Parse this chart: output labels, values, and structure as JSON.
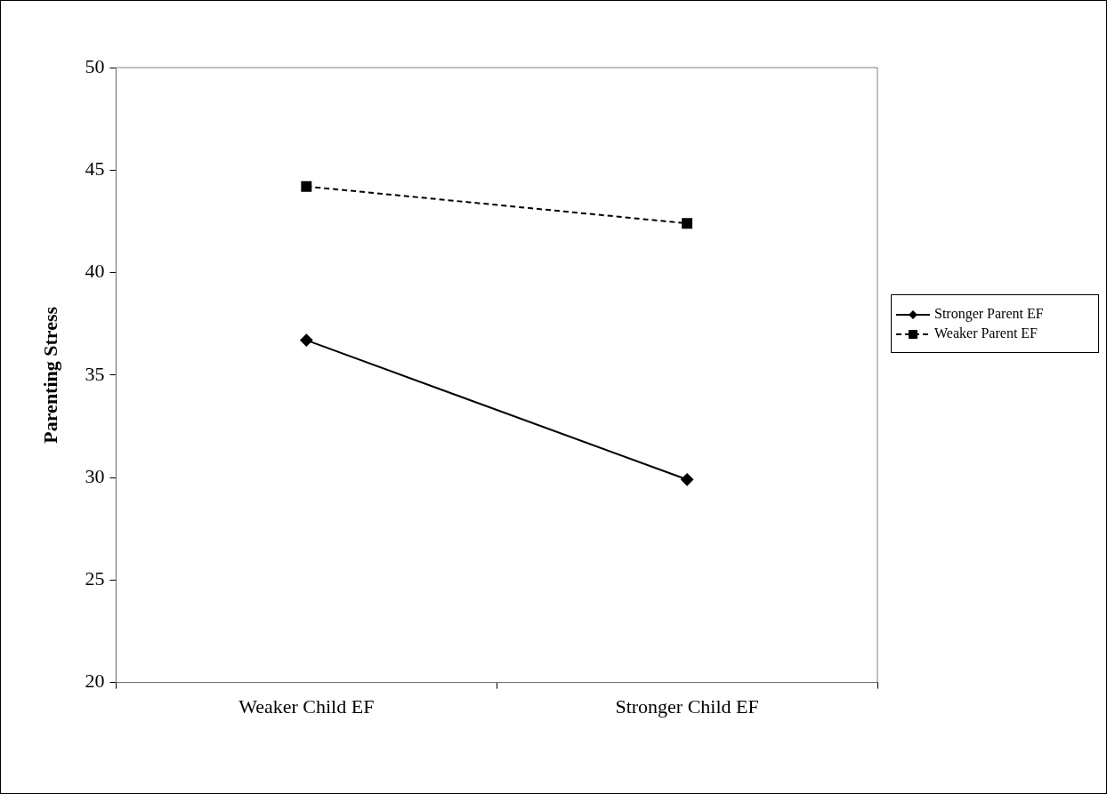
{
  "chart_data": {
    "type": "line",
    "ylabel": "Parenting Stress",
    "categories": [
      "Weaker Child EF",
      "Stronger Child EF"
    ],
    "series": [
      {
        "name": "Stronger Parent EF",
        "color": "#000000",
        "values": [
          36.7,
          29.9
        ],
        "marker": "diamond",
        "line_style": "solid"
      },
      {
        "name": "Weaker Parent EF",
        "color": "#000000",
        "values": [
          44.2,
          42.4
        ],
        "marker": "square",
        "line_style": "dashed"
      }
    ],
    "ylim": [
      20,
      50
    ],
    "yticks": [
      20,
      25,
      30,
      35,
      40,
      45,
      50
    ],
    "grid": false,
    "legend": "right"
  }
}
